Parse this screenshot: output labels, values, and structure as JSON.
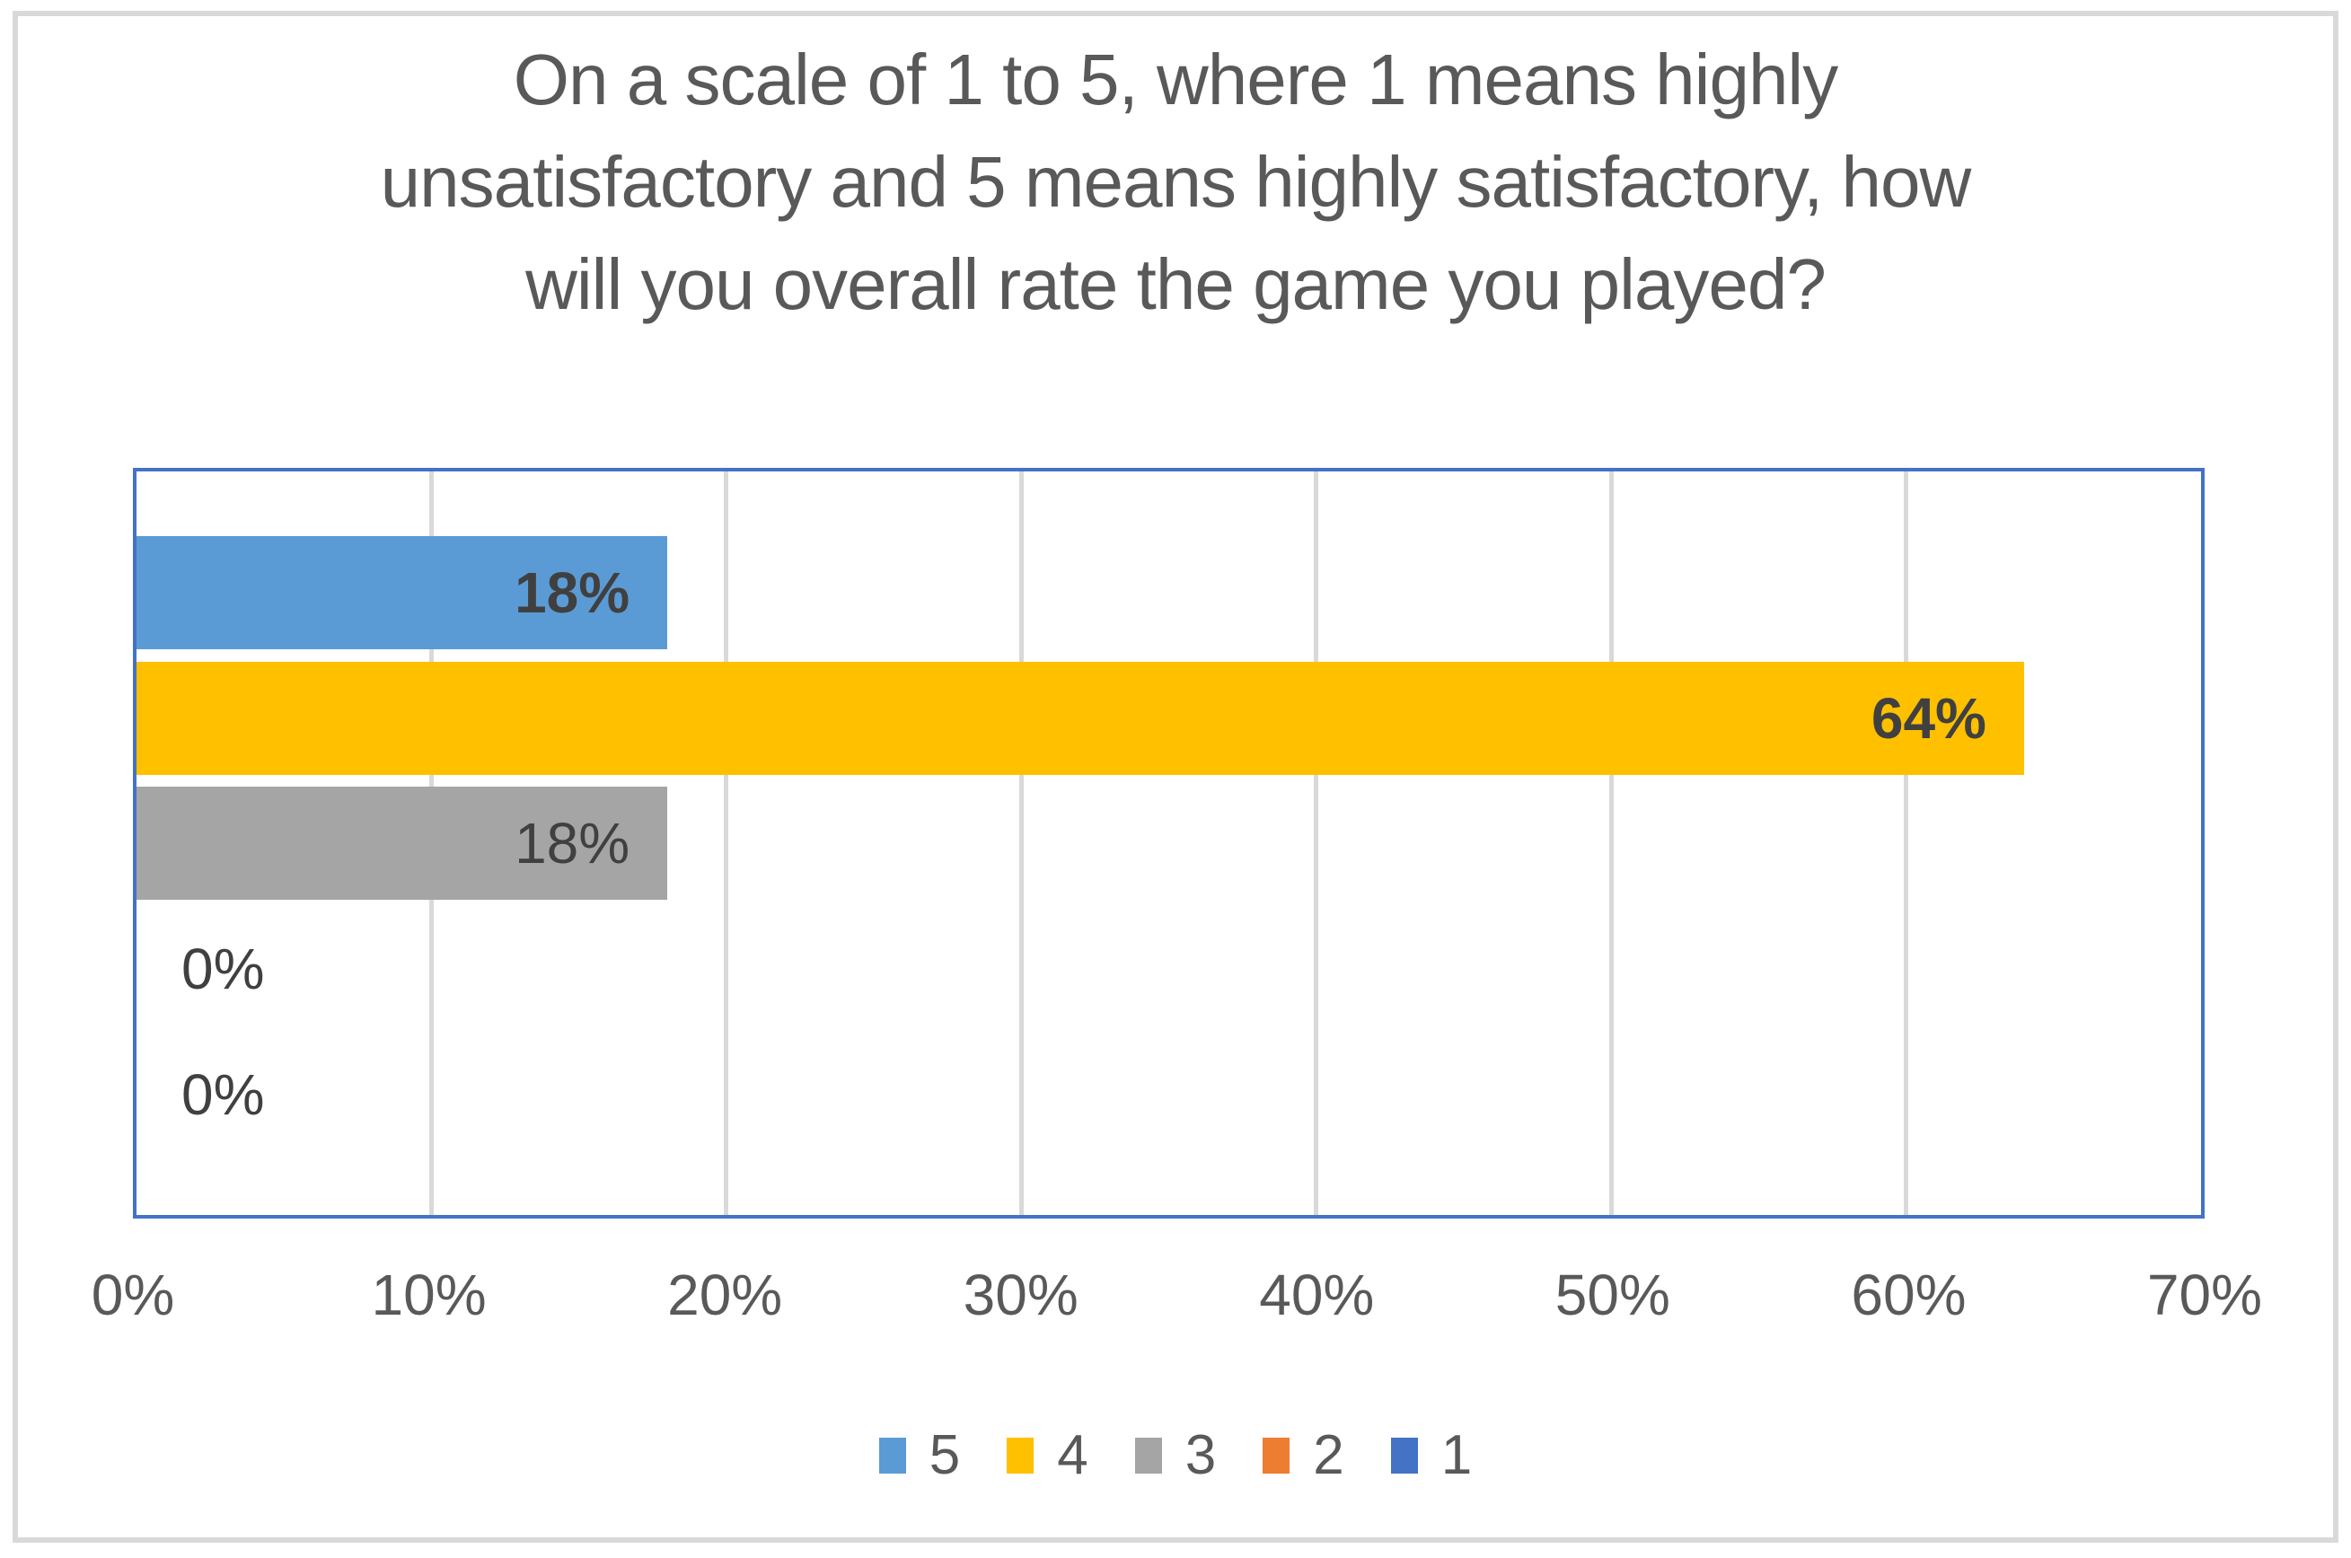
{
  "figure": {
    "background_color": "#FFFFFF",
    "outer_border_color": "#D9D9D9"
  },
  "chart_data": {
    "type": "bar",
    "orientation": "horizontal",
    "title": "On a scale of 1 to 5, where 1 means highly unsatisfactory and 5 means highly satisfactory, how will you overall rate the game you played?",
    "title_lines": [
      "On a scale of 1 to 5, where 1 means highly",
      "unsatisfactory and 5 means highly satisfactory, how",
      "will you overall rate the game you played?"
    ],
    "categories": [
      "5",
      "4",
      "3",
      "2",
      "1"
    ],
    "values": [
      18,
      64,
      18,
      0,
      0
    ],
    "value_labels": [
      "18%",
      "64%",
      "18%",
      "0%",
      "0%"
    ],
    "value_label_bold": [
      true,
      true,
      false,
      false,
      false
    ],
    "bar_colors": [
      "#5B9BD5",
      "#FFC000",
      "#A5A5A5",
      "#ED7D31",
      "#4472C4"
    ],
    "xlim": [
      0,
      70
    ],
    "x_tick_labels": [
      "0%",
      "10%",
      "20%",
      "30%",
      "40%",
      "50%",
      "60%",
      "70%"
    ],
    "grid": "vertical",
    "gridline_color": "#D9D9D9",
    "plot_border_color": "#4472C4",
    "title_color": "#595959",
    "axis_label_color": "#595959",
    "value_label_color": "#404040",
    "legend_position": "bottom",
    "legend": [
      {
        "label": "5",
        "color": "#5B9BD5"
      },
      {
        "label": "4",
        "color": "#FFC000"
      },
      {
        "label": "3",
        "color": "#A5A5A5"
      },
      {
        "label": "2",
        "color": "#ED7D31"
      },
      {
        "label": "1",
        "color": "#4472C4"
      }
    ]
  }
}
